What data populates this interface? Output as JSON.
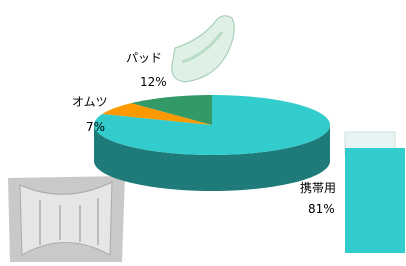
{
  "chart_data": {
    "type": "pie",
    "categories": [
      "携帯用",
      "オムツ",
      "パッド"
    ],
    "values": [
      81,
      7,
      12
    ],
    "value_labels": [
      "81%",
      "7%",
      "12%"
    ],
    "colors": [
      "#33cccc",
      "#ff9900",
      "#339966"
    ]
  }
}
